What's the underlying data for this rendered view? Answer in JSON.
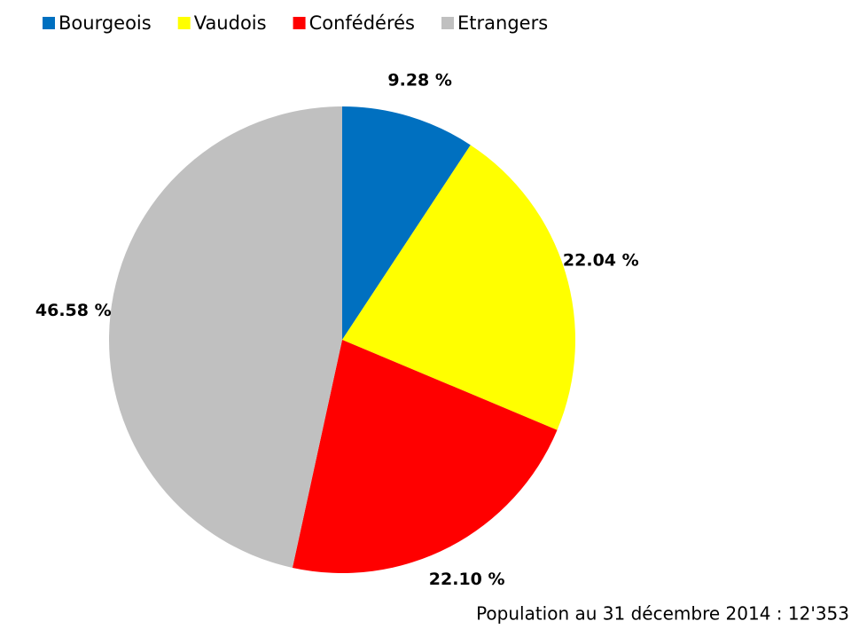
{
  "chart_data": {
    "type": "pie",
    "categories": [
      "Bourgeois",
      "Vaudois",
      "Confédérés",
      "Etrangers"
    ],
    "values": [
      9.28,
      22.04,
      22.1,
      46.58
    ],
    "value_labels": [
      "9.28 %",
      "22.04 %",
      "22.10 %",
      "46.58 %"
    ],
    "colors": [
      "#0070c0",
      "#ffff00",
      "#ff0000",
      "#c0c0c0"
    ],
    "legend": "top",
    "annotation": "Population au 31 décembre 2014 : 12'353"
  }
}
